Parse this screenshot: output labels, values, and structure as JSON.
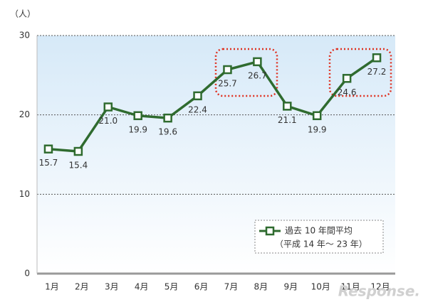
{
  "chart_data": {
    "type": "line",
    "y_unit_label": "（人）",
    "categories": [
      "1月",
      "2月",
      "3月",
      "4月",
      "5月",
      "6月",
      "7月",
      "8月",
      "9月",
      "10月",
      "11月",
      "12月"
    ],
    "series": [
      {
        "name": "過去 10 年間平均",
        "color": "#2f6b2f",
        "values": [
          15.7,
          15.4,
          21.0,
          19.9,
          19.6,
          22.4,
          25.7,
          26.7,
          21.1,
          19.9,
          24.6,
          27.2
        ],
        "value_labels": [
          "15.7",
          "15.4",
          "21.0",
          "19.9",
          "19.6",
          "22.4",
          "25.7",
          "26.7",
          "21.1",
          "19.9",
          "24.6",
          "27.2"
        ]
      }
    ],
    "legend_note": "（平成 14 年～ 23 年）",
    "ylim": [
      0,
      30
    ],
    "yticks": [
      0,
      10,
      20,
      30
    ],
    "grid": true,
    "watermark": "Response."
  }
}
